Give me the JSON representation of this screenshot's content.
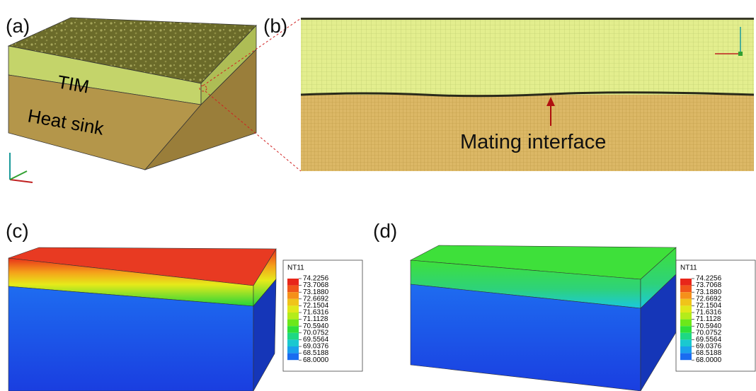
{
  "panels": {
    "a": "(a)",
    "b": "(b)",
    "c": "(c)",
    "d": "(d)"
  },
  "layers": {
    "tim": "TIM",
    "heat_sink": "Heat sink"
  },
  "annotation": "Mating interface",
  "legend": {
    "title": "NT11",
    "values": [
      "74.2256",
      "73.7068",
      "73.1880",
      "72.6692",
      "72.1504",
      "71.6316",
      "71.1128",
      "70.5940",
      "70.0752",
      "69.5564",
      "69.0376",
      "68.5188",
      "68.0000"
    ]
  }
}
